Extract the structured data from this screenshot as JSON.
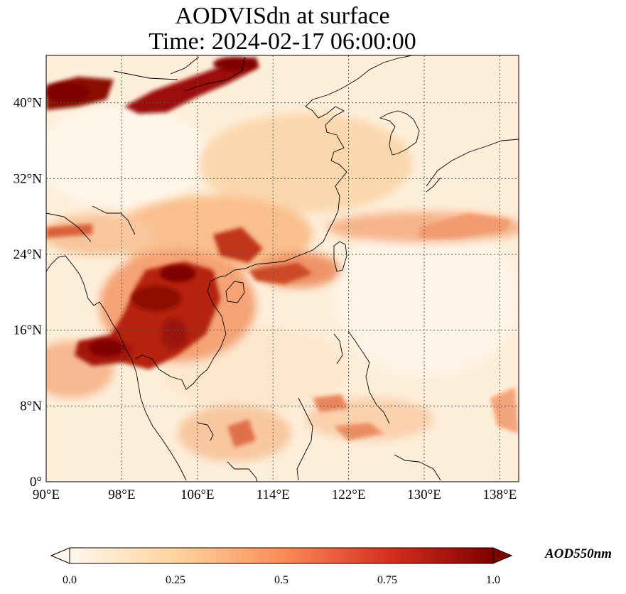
{
  "title": {
    "line1": "AODVISdn at surface",
    "line2": "Time: 2024-02-17 06:00:00"
  },
  "map": {
    "projection": "PlateCarree",
    "lon_range": [
      90,
      140
    ],
    "lat_range": [
      0,
      45
    ],
    "grid": "dotted",
    "x_ticks": [
      {
        "value": 90,
        "label": "90°E"
      },
      {
        "value": 98,
        "label": "98°E"
      },
      {
        "value": 106,
        "label": "106°E"
      },
      {
        "value": 114,
        "label": "114°E"
      },
      {
        "value": 122,
        "label": "122°E"
      },
      {
        "value": 130,
        "label": "130°E"
      },
      {
        "value": 138,
        "label": "138°E"
      }
    ],
    "y_ticks": [
      {
        "value": 0,
        "label": "0°"
      },
      {
        "value": 8,
        "label": "8°N"
      },
      {
        "value": 16,
        "label": "16°N"
      },
      {
        "value": 24,
        "label": "24°N"
      },
      {
        "value": 32,
        "label": "32°N"
      },
      {
        "value": 40,
        "label": "40°N"
      }
    ]
  },
  "colorbar": {
    "title": "AOD550nm",
    "colormap": "OrRd",
    "range": [
      0.0,
      1.0
    ],
    "extend": "both",
    "tick_labels": [
      {
        "value": 0.0,
        "label": "0.0"
      },
      {
        "value": 0.25,
        "label": "0.25"
      },
      {
        "value": 0.5,
        "label": "0.5"
      },
      {
        "value": 0.75,
        "label": "0.75"
      },
      {
        "value": 1.0,
        "label": "1.0"
      }
    ],
    "colors": [
      "#fff7ec",
      "#fdd49e",
      "#fc8d59",
      "#d7301f",
      "#7f0000"
    ]
  },
  "plumes": [
    {
      "lon": 92,
      "lat": 41,
      "value": 1.0
    },
    {
      "lon": 100,
      "lat": 41.5,
      "value": 0.95
    },
    {
      "lon": 104,
      "lat": 42.5,
      "value": 0.95
    },
    {
      "lon": 110,
      "lat": 44.3,
      "value": 1.0
    },
    {
      "lon": 104.5,
      "lat": 20.5,
      "value": 0.9
    },
    {
      "lon": 102,
      "lat": 18,
      "value": 0.85
    },
    {
      "lon": 100,
      "lat": 15,
      "value": 0.8
    },
    {
      "lon": 97,
      "lat": 14.5,
      "value": 0.85
    },
    {
      "lon": 108,
      "lat": 25,
      "value": 0.7
    },
    {
      "lon": 117,
      "lat": 22,
      "value": 0.6
    },
    {
      "lon": 93,
      "lat": 27,
      "value": 0.6
    },
    {
      "lon": 131,
      "lat": 26,
      "value": 0.4
    },
    {
      "lon": 138,
      "lat": 7,
      "value": 0.5
    },
    {
      "lon": 110,
      "lat": 4.5,
      "value": 0.5
    }
  ]
}
